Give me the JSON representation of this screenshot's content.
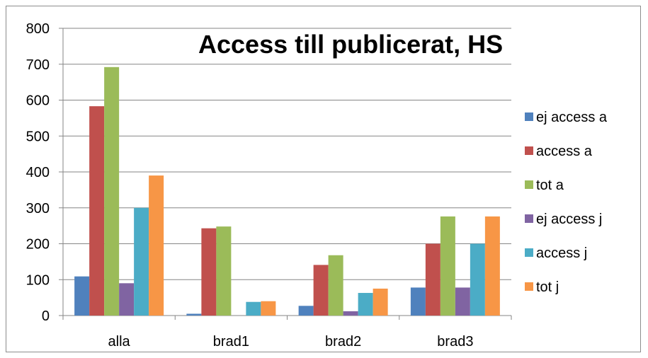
{
  "chart_data": {
    "type": "bar",
    "title": "Access till publicerat, HS",
    "categories": [
      "alla",
      "brad1",
      "brad2",
      "brad3"
    ],
    "series": [
      {
        "name": "ej access a",
        "color": "#4f81bd",
        "values": [
          109,
          5,
          27,
          78
        ]
      },
      {
        "name": "access a",
        "color": "#c0504d",
        "values": [
          583,
          243,
          141,
          200
        ]
      },
      {
        "name": "tot a",
        "color": "#9bbb59",
        "values": [
          692,
          248,
          168,
          276
        ]
      },
      {
        "name": "ej access j",
        "color": "#8064a2",
        "values": [
          90,
          0,
          12,
          78
        ]
      },
      {
        "name": "access j",
        "color": "#4bacc6",
        "values": [
          300,
          38,
          63,
          200
        ]
      },
      {
        "name": "tot j",
        "color": "#f79646",
        "values": [
          390,
          40,
          75,
          276
        ]
      }
    ],
    "ylim": [
      0,
      800
    ],
    "yticks": [
      "0",
      "100",
      "200",
      "300",
      "400",
      "500",
      "600",
      "700",
      "800"
    ],
    "grid": true,
    "legend_position": "right"
  }
}
